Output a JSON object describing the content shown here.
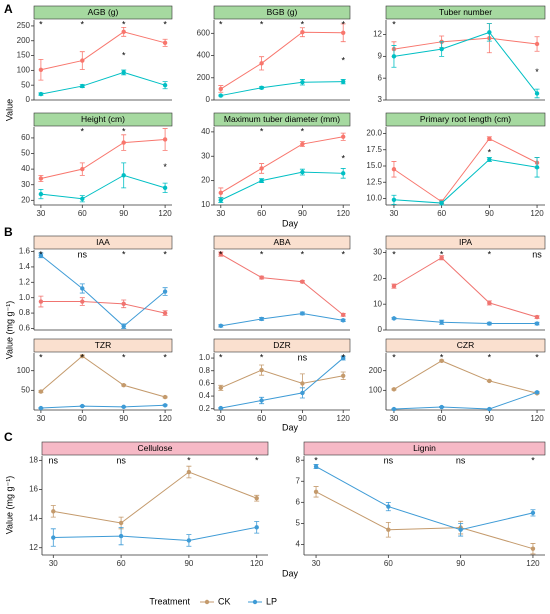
{
  "sections": [
    {
      "label": "A",
      "ylabel": "Value",
      "xlabel": "Day",
      "strip_color": "#a6d9a0"
    },
    {
      "label": "B",
      "ylabel": "Value (mg g⁻¹)",
      "xlabel": "Day",
      "strip_color": "#fae0cf"
    },
    {
      "label": "C",
      "ylabel": "Value (mg g⁻¹)",
      "xlabel": "Day",
      "strip_color": "#f6b9c6"
    }
  ],
  "legend_title": "Treatment",
  "chart_data": [
    {
      "type": "line",
      "title": "AGB (g)",
      "x": [
        30,
        60,
        90,
        120
      ],
      "xlim": [
        25,
        125
      ],
      "ylim": [
        0,
        270
      ],
      "yticks": [
        0,
        50,
        100,
        150,
        200,
        250
      ],
      "series": [
        {
          "name": "CK",
          "color": "#F8766D",
          "values": [
            102,
            133,
            230,
            193
          ],
          "errors": [
            35,
            30,
            15,
            12
          ]
        },
        {
          "name": "LP",
          "color": "#00BFC4",
          "values": [
            20,
            47,
            93,
            50
          ],
          "errors": [
            4,
            5,
            8,
            12
          ]
        }
      ],
      "annotations": [
        "*",
        "*",
        "*",
        "*"
      ],
      "annotations_low": [
        null,
        null,
        "*",
        null
      ]
    },
    {
      "type": "line",
      "title": "BGB (g)",
      "x": [
        30,
        60,
        90,
        120
      ],
      "xlim": [
        25,
        125
      ],
      "ylim": [
        0,
        720
      ],
      "yticks": [
        0,
        200,
        400,
        600
      ],
      "series": [
        {
          "name": "CK",
          "color": "#F8766D",
          "values": [
            100,
            330,
            610,
            605
          ],
          "errors": [
            30,
            60,
            40,
            80
          ]
        },
        {
          "name": "LP",
          "color": "#00BFC4",
          "values": [
            40,
            110,
            160,
            165
          ],
          "errors": [
            5,
            10,
            25,
            20
          ]
        }
      ],
      "annotations": [
        "*",
        "*",
        "*",
        "*"
      ],
      "annotations_low": [
        null,
        null,
        null,
        "*"
      ]
    },
    {
      "type": "line",
      "title": "Tuber number",
      "x": [
        30,
        60,
        90,
        120
      ],
      "xlim": [
        25,
        125
      ],
      "ylim": [
        3,
        14
      ],
      "yticks": [
        3,
        6,
        9,
        12
      ],
      "series": [
        {
          "name": "CK",
          "color": "#F8766D",
          "values": [
            10,
            11,
            11.5,
            10.7
          ],
          "errors": [
            1,
            0.8,
            2,
            1
          ]
        },
        {
          "name": "LP",
          "color": "#00BFC4",
          "values": [
            9,
            10,
            12.3,
            3.9
          ],
          "errors": [
            1.5,
            1,
            1.2,
            0.6
          ]
        }
      ],
      "annotations": [
        "*",
        null,
        null,
        null
      ],
      "annotations_low": [
        null,
        null,
        null,
        "*"
      ]
    },
    {
      "type": "line",
      "title": "Height (cm)",
      "x": [
        30,
        60,
        90,
        120
      ],
      "xlim": [
        25,
        125
      ],
      "xticks": [
        30,
        60,
        90,
        120
      ],
      "ylim": [
        17,
        67
      ],
      "yticks": [
        20,
        30,
        40,
        50,
        60
      ],
      "series": [
        {
          "name": "CK",
          "color": "#F8766D",
          "values": [
            34,
            40,
            57,
            59
          ],
          "errors": [
            2,
            4,
            5,
            7
          ]
        },
        {
          "name": "LP",
          "color": "#00BFC4",
          "values": [
            24,
            21,
            36,
            28
          ],
          "errors": [
            3,
            2,
            8,
            3
          ]
        }
      ],
      "annotations": [
        null,
        "*",
        "*",
        null
      ],
      "annotations_low": [
        null,
        null,
        null,
        "*"
      ]
    },
    {
      "type": "line",
      "title": "Maximum tuber diameter (mm)",
      "x": [
        30,
        60,
        90,
        120
      ],
      "xlim": [
        25,
        125
      ],
      "xticks": [
        30,
        60,
        90,
        120
      ],
      "ylim": [
        10,
        42
      ],
      "yticks": [
        10,
        20,
        30,
        40
      ],
      "series": [
        {
          "name": "CK",
          "color": "#F8766D",
          "values": [
            15,
            25,
            35,
            38
          ],
          "errors": [
            2,
            2,
            1,
            1.5
          ]
        },
        {
          "name": "LP",
          "color": "#00BFC4",
          "values": [
            12,
            20,
            23.5,
            23
          ],
          "errors": [
            1,
            0.8,
            1.2,
            2
          ]
        }
      ],
      "annotations": [
        null,
        "*",
        "*",
        null
      ],
      "annotations_low": [
        null,
        null,
        null,
        "*"
      ]
    },
    {
      "type": "line",
      "title": "Primary root length (cm)",
      "x": [
        30,
        60,
        90,
        120
      ],
      "xlim": [
        25,
        125
      ],
      "xticks": [
        30,
        60,
        90,
        120
      ],
      "ylim": [
        9,
        21
      ],
      "yticks": [
        {
          "value": 10,
          "label": "10.0"
        },
        12.5,
        {
          "value": 15,
          "label": "15.0"
        },
        17.5,
        {
          "value": 20,
          "label": "20.0"
        }
      ],
      "series": [
        {
          "name": "CK",
          "color": "#F8766D",
          "values": [
            14.5,
            9.5,
            19.2,
            15.5
          ],
          "errors": [
            1.2,
            0.3,
            0.3,
            0.8
          ]
        },
        {
          "name": "LP",
          "color": "#00BFC4",
          "values": [
            9.8,
            9.3,
            16,
            14.8
          ],
          "errors": [
            0.7,
            0.3,
            0.3,
            1.5
          ]
        }
      ],
      "annotations": [
        null,
        null,
        null,
        null
      ],
      "annotations_low": [
        null,
        null,
        "*",
        null
      ]
    },
    {
      "type": "line",
      "title": "IAA",
      "x": [
        30,
        60,
        90,
        120
      ],
      "xlim": [
        25,
        125
      ],
      "ylim": [
        0.58,
        1.62
      ],
      "yticks": [
        0.6,
        0.8,
        {
          "value": 1,
          "label": "1.0"
        },
        1.2,
        1.4,
        1.6
      ],
      "series": [
        {
          "name": "CK",
          "color": "#F07470",
          "values": [
            0.95,
            0.95,
            0.92,
            0.8
          ],
          "errors": [
            0.07,
            0.05,
            0.05,
            0.03
          ]
        },
        {
          "name": "LP",
          "color": "#3E9BD6",
          "values": [
            1.55,
            1.12,
            0.63,
            1.08
          ],
          "errors": [
            0.03,
            0.06,
            0.03,
            0.05
          ]
        }
      ],
      "annotations": [
        "*",
        "ns",
        "*",
        "*"
      ]
    },
    {
      "type": "line",
      "title": "ABA",
      "x": [
        30,
        60,
        90,
        120
      ],
      "xlim": [
        25,
        125
      ],
      "ylim": [
        22,
        80
      ],
      "series": [
        {
          "name": "CK",
          "color": "#F07470",
          "values": [
            77,
            60,
            57,
            33
          ],
          "errors": [
            1.5,
            1,
            0.8,
            1
          ]
        },
        {
          "name": "LP",
          "color": "#3E9BD6",
          "values": [
            25,
            30,
            34,
            29
          ],
          "errors": [
            0.8,
            1,
            1,
            0.8
          ]
        }
      ],
      "annotations": [
        "*",
        "*",
        "*",
        "*"
      ]
    },
    {
      "type": "line",
      "title": "IPA",
      "x": [
        30,
        60,
        90,
        120
      ],
      "xlim": [
        25,
        125
      ],
      "ylim": [
        0,
        31
      ],
      "yticks": [
        0,
        10,
        20,
        30
      ],
      "series": [
        {
          "name": "CK",
          "color": "#F07470",
          "values": [
            17,
            28,
            10.5,
            5
          ],
          "errors": [
            0.8,
            0.8,
            0.8,
            0.5
          ]
        },
        {
          "name": "LP",
          "color": "#3E9BD6",
          "values": [
            4.5,
            3,
            2.5,
            2.5
          ],
          "errors": [
            0.3,
            0.8,
            0.5,
            0.5
          ]
        }
      ],
      "annotations": [
        "*",
        "*",
        "*",
        "ns"
      ]
    },
    {
      "type": "line",
      "title": "TZR",
      "x": [
        30,
        60,
        90,
        120
      ],
      "xlim": [
        25,
        125
      ],
      "xticks": [
        30,
        60,
        90,
        120
      ],
      "ylim": [
        0,
        145
      ],
      "yticks": [
        50,
        100
      ],
      "series": [
        {
          "name": "CK",
          "color": "#C49A6C",
          "values": [
            47,
            137,
            63,
            33
          ],
          "errors": [
            2,
            3,
            2,
            2
          ]
        },
        {
          "name": "LP",
          "color": "#3E9BD6",
          "values": [
            5,
            10,
            8,
            12
          ],
          "errors": [
            1,
            1.5,
            1,
            1.5
          ]
        }
      ],
      "annotations": [
        "*",
        "*",
        "*",
        "*"
      ]
    },
    {
      "type": "line",
      "title": "DZR",
      "x": [
        30,
        60,
        90,
        120
      ],
      "xlim": [
        25,
        125
      ],
      "xticks": [
        30,
        60,
        90,
        120
      ],
      "ylim": [
        0.18,
        1.08
      ],
      "yticks": [
        0.2,
        0.4,
        0.6,
        0.8,
        {
          "value": 1,
          "label": "1.0"
        }
      ],
      "series": [
        {
          "name": "CK",
          "color": "#C49A6C",
          "values": [
            0.53,
            0.81,
            0.6,
            0.72
          ],
          "errors": [
            0.04,
            0.08,
            0.15,
            0.06
          ]
        },
        {
          "name": "LP",
          "color": "#3E9BD6",
          "values": [
            0.21,
            0.33,
            0.45,
            1
          ],
          "errors": [
            0.01,
            0.05,
            0.08,
            0.03
          ]
        }
      ],
      "annotations": [
        "*",
        "*",
        "ns",
        "*"
      ]
    },
    {
      "type": "line",
      "title": "CZR",
      "x": [
        30,
        60,
        90,
        120
      ],
      "xlim": [
        25,
        125
      ],
      "xticks": [
        30,
        60,
        90,
        120
      ],
      "ylim": [
        0,
        290
      ],
      "yticks": [
        100,
        200
      ],
      "series": [
        {
          "name": "CK",
          "color": "#C49A6C",
          "values": [
            105,
            250,
            148,
            85
          ],
          "errors": [
            3,
            4,
            3,
            3
          ]
        },
        {
          "name": "LP",
          "color": "#3E9BD6",
          "values": [
            5,
            15,
            5,
            90
          ],
          "errors": [
            2,
            3,
            2,
            4
          ]
        }
      ],
      "annotations": [
        "*",
        "*",
        "*",
        "*"
      ]
    },
    {
      "type": "line",
      "title": "Cellulose",
      "x": [
        30,
        60,
        90,
        120
      ],
      "xlim": [
        25,
        125
      ],
      "xticks": [
        30,
        60,
        90,
        120
      ],
      "ylim": [
        11.5,
        18.3
      ],
      "yticks": [
        12,
        14,
        16,
        18
      ],
      "series": [
        {
          "name": "CK",
          "color": "#C49A6C",
          "values": [
            14.5,
            13.7,
            17.2,
            15.4
          ],
          "errors": [
            0.4,
            0.4,
            0.4,
            0.2
          ]
        },
        {
          "name": "LP",
          "color": "#3E9BD6",
          "values": [
            12.7,
            12.8,
            12.5,
            13.4
          ],
          "errors": [
            0.6,
            0.6,
            0.4,
            0.4
          ]
        }
      ],
      "annotations": [
        "ns",
        "ns",
        "*",
        "*"
      ]
    },
    {
      "type": "line",
      "title": "Lignin",
      "x": [
        30,
        60,
        90,
        120
      ],
      "xlim": [
        25,
        125
      ],
      "xticks": [
        30,
        60,
        90,
        120
      ],
      "ylim": [
        3.5,
        8.2
      ],
      "yticks": [
        4,
        5,
        6,
        7,
        8
      ],
      "series": [
        {
          "name": "CK",
          "color": "#C49A6C",
          "values": [
            6.5,
            4.7,
            4.8,
            3.8
          ],
          "errors": [
            0.25,
            0.35,
            0.3,
            0.25
          ]
        },
        {
          "name": "LP",
          "color": "#3E9BD6",
          "values": [
            7.7,
            5.8,
            4.7,
            5.5
          ],
          "errors": [
            0.1,
            0.2,
            0.3,
            0.15
          ]
        }
      ],
      "annotations": [
        "*",
        "ns",
        "ns",
        "*"
      ]
    }
  ]
}
